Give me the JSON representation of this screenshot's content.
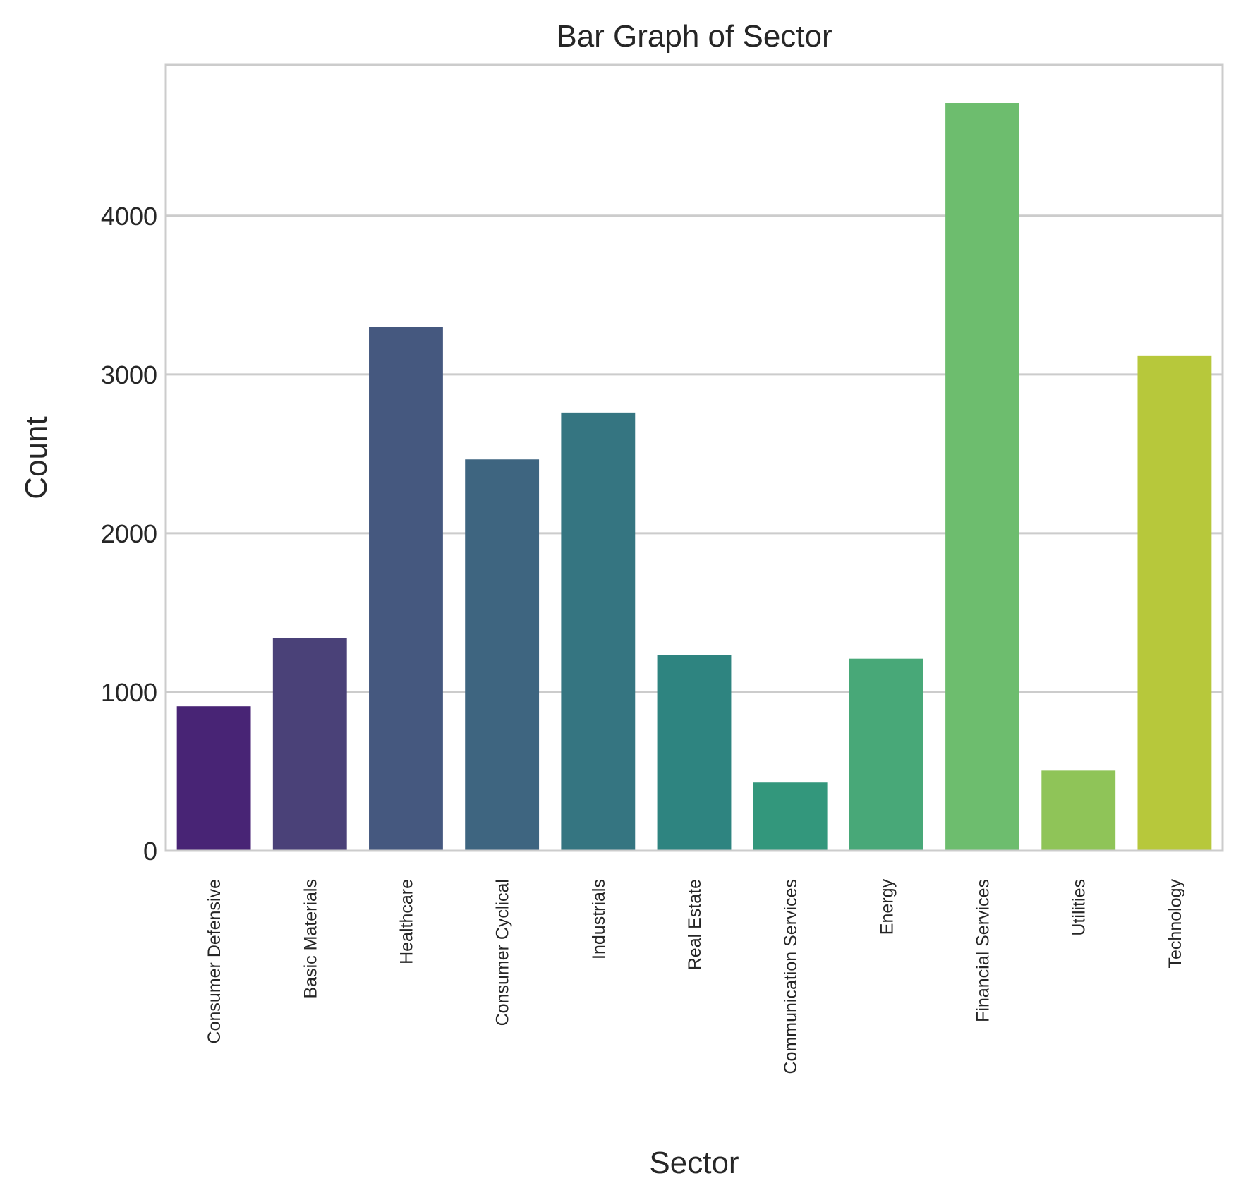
{
  "chart_data": {
    "type": "bar",
    "title": "Bar Graph of Sector",
    "xlabel": "Sector",
    "ylabel": "Count",
    "categories": [
      "Consumer Defensive",
      "Basic Materials",
      "Healthcare",
      "Consumer Cyclical",
      "Industrials",
      "Real Estate",
      "Communication Services",
      "Energy",
      "Financial Services",
      "Utilities",
      "Technology"
    ],
    "values": [
      910,
      1340,
      3300,
      2465,
      2760,
      1235,
      430,
      1210,
      4710,
      505,
      3120
    ],
    "colors": [
      "#482475",
      "#4a4178",
      "#45587f",
      "#3e6580",
      "#357581",
      "#2e8480",
      "#33977c",
      "#48a878",
      "#6dbd6e",
      "#8fc458",
      "#b7c83b"
    ],
    "ylim": [
      0,
      4950
    ],
    "yticks": [
      0,
      1000,
      2000,
      3000,
      4000
    ],
    "grid": true,
    "legend": "none"
  }
}
